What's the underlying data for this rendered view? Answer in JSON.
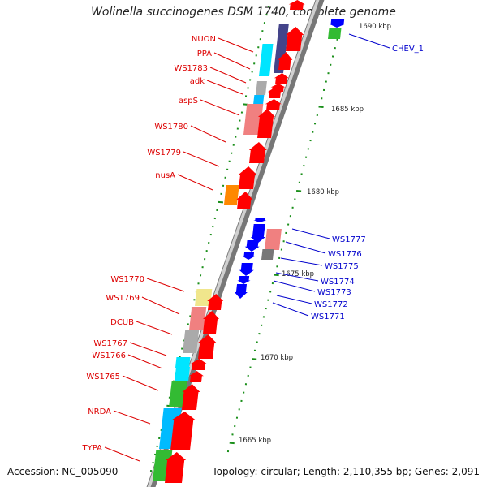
{
  "title": "Wolinella succinogenes DSM 1740, complete genome",
  "accession": "Accession: NC_005090",
  "topology": "Topology: circular; Length: 2,110,355 bp; Genes: 2,091",
  "colors": {
    "backbone_dark": "#777777",
    "backbone_light": "#d0d0d0",
    "forward_gene": "#ff0000",
    "reverse_gene": "#0000ff",
    "forward_label": "#dd0000",
    "reverse_label": "#0000cc",
    "tick": "#1a8f1a",
    "green_feature": "#33bb33",
    "cyan_feature": "#00e5ff",
    "pink_feature": "#f08080",
    "purple_feature": "#44448a",
    "orange_feature": "#ff8800",
    "yellow_feature": "#f0e68c",
    "gray_feature": "#aaaaaa",
    "darkgray_feature": "#777777",
    "cyanblue_feature": "#00bbff"
  },
  "scale_labels": [
    "1690 kbp",
    "1685 kbp",
    "1680 kbp",
    "1675 kbp",
    "1670 kbp",
    "1665 kbp"
  ],
  "forward_labels": [
    "NUON",
    "PPA",
    "WS1783",
    "adk",
    "aspS",
    "WS1780",
    "WS1779",
    "nusA",
    "WS1770",
    "WS1769",
    "DCUB",
    "WS1767",
    "WS1766",
    "WS1765",
    "NRDA",
    "TYPA"
  ],
  "reverse_labels": [
    "CHEV_1",
    "WS1777",
    "WS1776",
    "WS1775",
    "WS1774",
    "WS1773",
    "WS1772",
    "WS1771"
  ],
  "legend_note": ""
}
